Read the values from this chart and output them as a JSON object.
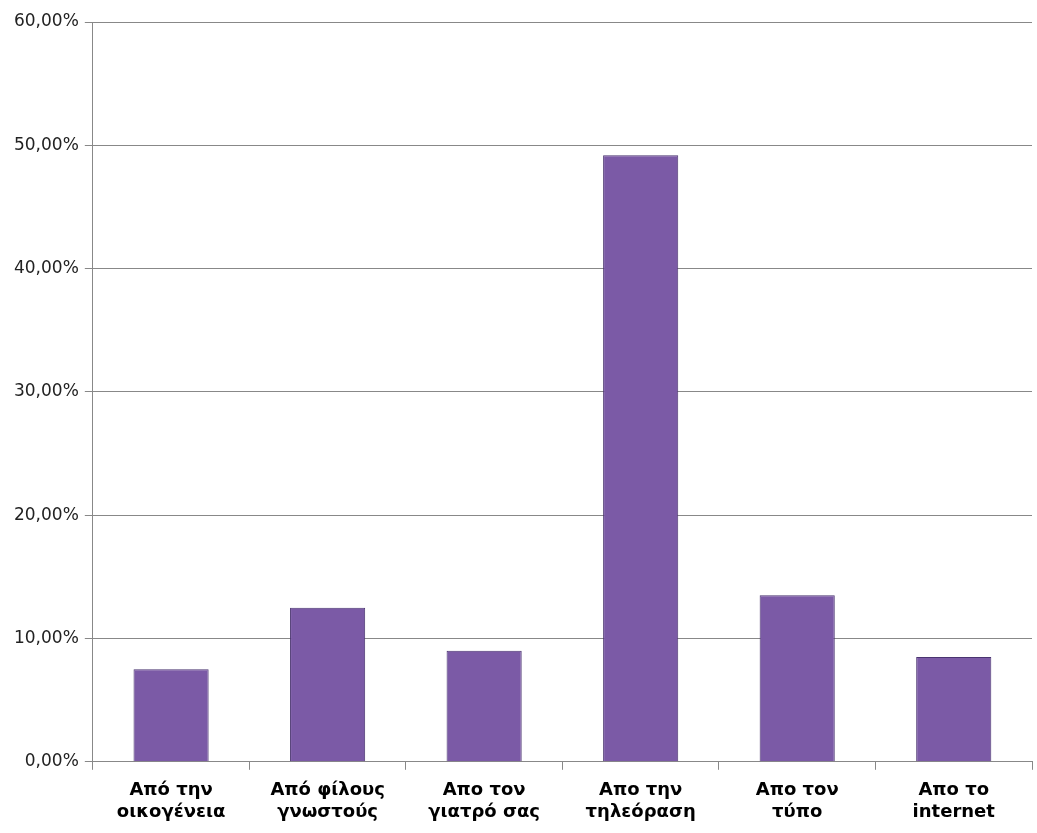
{
  "chart_data": {
    "type": "bar",
    "categories": [
      "Από την οικογένεια",
      "Από φίλους γνωστούς",
      "Απο τον γιατρό σας",
      "Απο την τηλεόραση",
      "Απο τον τύπο",
      "Απο το internet"
    ],
    "values": [
      7.5,
      12.5,
      9.0,
      49.2,
      13.5,
      8.5
    ],
    "color": "#7b5aa6",
    "ylim": [
      0,
      60
    ],
    "yticks": [
      {
        "value": 0,
        "label": "0,00%"
      },
      {
        "value": 10,
        "label": "10,00%"
      },
      {
        "value": 20,
        "label": "20,00%"
      },
      {
        "value": 30,
        "label": "30,00%"
      },
      {
        "value": 40,
        "label": "40,00%"
      },
      {
        "value": 50,
        "label": "50,00%"
      },
      {
        "value": 60,
        "label": "60,00%"
      }
    ],
    "grid": "y",
    "legend": false
  }
}
